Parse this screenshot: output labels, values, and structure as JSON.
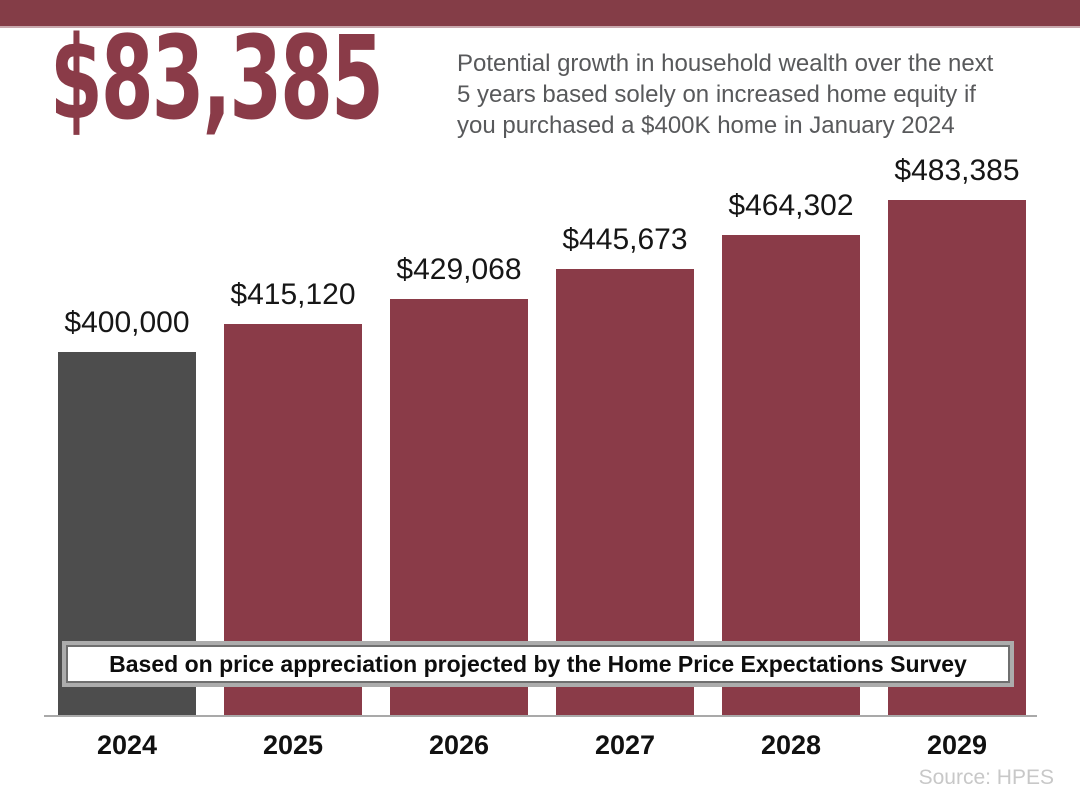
{
  "header": {
    "big_number": "$83,385",
    "subtitle_line1": "Potential growth in household wealth over the next",
    "subtitle_line2": "5 years based solely on increased home equity if",
    "subtitle_line3": "you purchased a $400K home in January 2024"
  },
  "chart_data": {
    "type": "bar",
    "title": "Potential growth in household wealth over the next 5 years based solely on increased home equity if you purchased a $400K home in January 2024",
    "categories": [
      "2024",
      "2025",
      "2026",
      "2027",
      "2028",
      "2029"
    ],
    "values": [
      400000,
      415120,
      429068,
      445673,
      464302,
      483385
    ],
    "bar_labels": [
      "$400,000",
      "$415,120",
      "$429,068",
      "$445,673",
      "$464,302",
      "$483,385"
    ],
    "bar_colors": [
      "#4D4D4D",
      "#8A3B48",
      "#8A3B48",
      "#8A3B48",
      "#8A3B48",
      "#8A3B48"
    ],
    "highlight_difference": "$83,385",
    "annotation": "Based on price appreciation projected by the Home Price Expectations Survey",
    "xlabel": "",
    "ylabel": "",
    "ylim": [
      200000,
      483385
    ],
    "grid": false,
    "legend": false
  },
  "banner": {
    "text": "Based on price appreciation projected by the Home Price Expectations Survey"
  },
  "source": {
    "text": "Source: HPES"
  },
  "colors": {
    "accent_maroon": "#8A3B48",
    "strip_maroon": "#843D47",
    "gray_bar": "#4D4D4D",
    "subtitle_gray": "#58595B",
    "source_gray": "#C8C8C8",
    "axis_gray": "#A9A9A9"
  }
}
